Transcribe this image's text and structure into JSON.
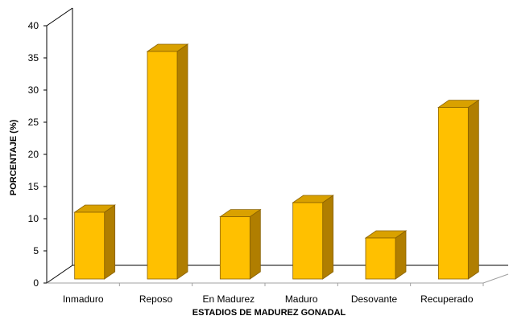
{
  "chart_data": {
    "type": "bar",
    "categories": [
      "Inmaduro",
      "Reposo",
      "En Madurez",
      "Maduro",
      "Desovante",
      "Recuperado"
    ],
    "values": [
      10.5,
      35.5,
      9.8,
      12,
      6.5,
      26.8
    ],
    "xlabel": "ESTADIOS DE MADUREZ GONADAL",
    "ylabel": "PORCENTAJE (%)",
    "ylim": [
      0,
      40
    ],
    "yticks": [
      0,
      5,
      10,
      15,
      20,
      25,
      30,
      35,
      40
    ],
    "grid": false,
    "legend": "none",
    "style": "3d-column"
  },
  "colors": {
    "bar_front": "#FFC000",
    "bar_side": "#B07E00",
    "bar_top": "#D9A100",
    "bar_edge": "#8A6200",
    "axis": "#000000"
  }
}
